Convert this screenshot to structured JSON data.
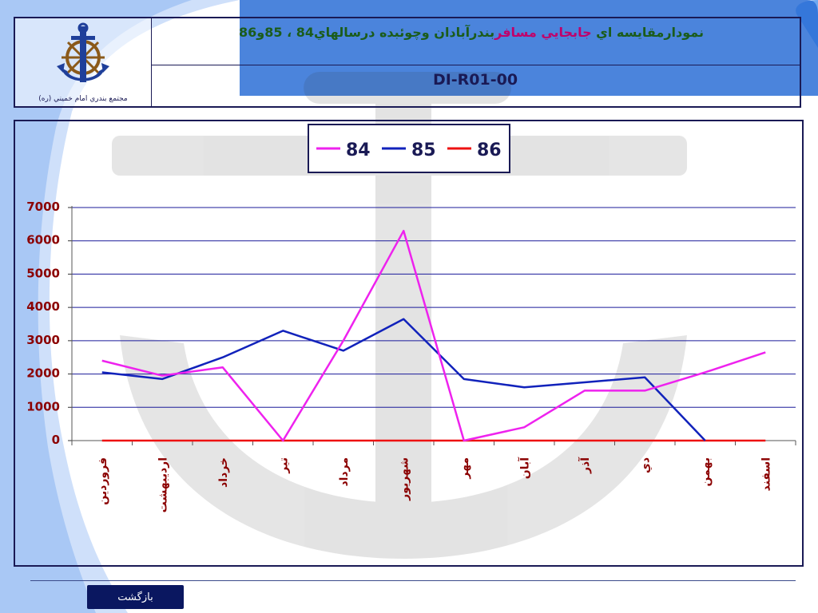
{
  "header": {
    "title_part1": "نمودارمقايسه اي ",
    "title_highlight": "جابجايي مسافر",
    "title_part2": "بندرآبادان وچوئبده درسالهاي84 ، 85و86",
    "doc_code": "DI-R01-00",
    "org_name": "مجتمع بندري امام خميني (ره)"
  },
  "footer": {
    "back_label": "بازگشت"
  },
  "colors": {
    "series_84": "#ee22ee",
    "series_85": "#1122bb",
    "series_86": "#ee1111",
    "frame": "#1a1a55",
    "tick_label": "#8b0000"
  },
  "chart_data": {
    "type": "line",
    "categories": [
      "فروردين",
      "ارديبهشت",
      "خرداد",
      "تير",
      "مرداد",
      "شهريور",
      "مهر",
      "آبان",
      "آذر",
      "دي",
      "بهمن",
      "اسفند"
    ],
    "series": [
      {
        "name": "84",
        "values": [
          2400,
          1950,
          2200,
          0,
          3000,
          6300,
          0,
          400,
          1500,
          1500,
          2050,
          2650
        ]
      },
      {
        "name": "85",
        "values": [
          2050,
          1850,
          2500,
          3300,
          2700,
          3650,
          1850,
          1600,
          1750,
          1900,
          0,
          null
        ]
      },
      {
        "name": "86",
        "values": [
          0,
          0,
          0,
          0,
          0,
          0,
          0,
          0,
          0,
          0,
          0,
          0
        ]
      }
    ],
    "yticks": [
      0,
      1000,
      2000,
      3000,
      4000,
      5000,
      6000,
      7000
    ],
    "ylim": [
      0,
      7000
    ],
    "grid": true,
    "legend_position": "top-center"
  }
}
